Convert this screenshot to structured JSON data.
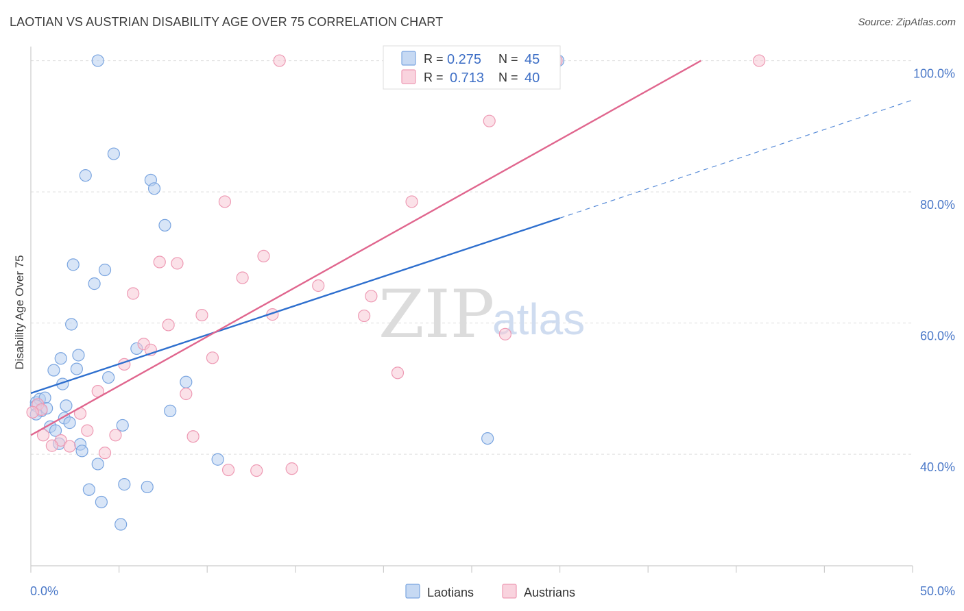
{
  "title": "LAOTIAN VS AUSTRIAN DISABILITY AGE OVER 75 CORRELATION CHART",
  "source": "Source: ZipAtlas.com",
  "watermark": {
    "part1": "ZIP",
    "part2": "atlas"
  },
  "legend": {
    "rows": [
      {
        "r_label": "R =",
        "r_value": "0.275",
        "n_label": "N =",
        "n_value": "45"
      },
      {
        "r_label": "R =",
        "r_value": "0.713",
        "n_label": "N =",
        "n_value": "40"
      }
    ]
  },
  "bottom_legend": {
    "series1": "Laotians",
    "series2": "Austrians"
  },
  "colors": {
    "laotians_fill": "#b8d0f0",
    "laotians_stroke": "#7aa5e0",
    "laotians_line": "#2e6fce",
    "austrians_fill": "#f8c8d6",
    "austrians_stroke": "#ee9ab4",
    "austrians_line": "#e0668e",
    "grid": "#dddddd",
    "axis_text": "#4a78c8"
  },
  "chart_data": {
    "type": "scatter",
    "title": "LAOTIAN VS AUSTRIAN DISABILITY AGE OVER 75 CORRELATION CHART",
    "xlabel": "",
    "ylabel": "Disability Age Over 75",
    "xlim": [
      0,
      50
    ],
    "ylim": [
      21,
      101
    ],
    "x_tick_labels": [
      "0.0%",
      "50.0%"
    ],
    "y_ticks": [
      40,
      60,
      80,
      100
    ],
    "y_tick_labels": [
      "40.0%",
      "60.0%",
      "80.0%",
      "100.0%"
    ],
    "grid": true,
    "legend_position": "top-center",
    "series": [
      {
        "name": "Laotians",
        "r": 0.275,
        "n": 45,
        "trend": {
          "x0": 0,
          "y0": 49.3,
          "x1": 30,
          "y1": 76.0,
          "dashed_to_x": 50,
          "dashed_to_y": 94.0
        },
        "points": [
          [
            3.8,
            100.0
          ],
          [
            4.7,
            85.8
          ],
          [
            3.1,
            82.5
          ],
          [
            6.8,
            81.8
          ],
          [
            7.0,
            80.5
          ],
          [
            7.6,
            74.9
          ],
          [
            2.4,
            68.9
          ],
          [
            4.2,
            68.1
          ],
          [
            3.6,
            66.0
          ],
          [
            2.3,
            59.8
          ],
          [
            6.0,
            56.1
          ],
          [
            2.7,
            55.1
          ],
          [
            1.7,
            54.6
          ],
          [
            1.3,
            52.8
          ],
          [
            2.6,
            53.0
          ],
          [
            4.4,
            51.7
          ],
          [
            1.8,
            50.7
          ],
          [
            8.8,
            51.0
          ],
          [
            0.3,
            47.9
          ],
          [
            0.5,
            48.4
          ],
          [
            0.8,
            48.6
          ],
          [
            0.3,
            47.4
          ],
          [
            0.6,
            46.6
          ],
          [
            0.9,
            47.0
          ],
          [
            2.0,
            47.4
          ],
          [
            0.3,
            46.1
          ],
          [
            7.9,
            46.6
          ],
          [
            1.9,
            45.5
          ],
          [
            2.2,
            44.8
          ],
          [
            1.1,
            44.2
          ],
          [
            5.2,
            44.4
          ],
          [
            1.4,
            43.6
          ],
          [
            1.6,
            41.6
          ],
          [
            2.8,
            41.5
          ],
          [
            2.9,
            40.5
          ],
          [
            25.9,
            42.4
          ],
          [
            10.6,
            39.2
          ],
          [
            3.8,
            38.5
          ],
          [
            5.3,
            35.4
          ],
          [
            3.3,
            34.6
          ],
          [
            6.6,
            35.0
          ],
          [
            4.0,
            32.7
          ],
          [
            5.1,
            29.3
          ],
          [
            26.0,
            100.0
          ],
          [
            29.9,
            100.0
          ]
        ]
      },
      {
        "name": "Austrians",
        "r": 0.713,
        "n": 40,
        "trend": {
          "x0": 0,
          "y0": 42.9,
          "x1": 38.0,
          "y1": 100.0
        },
        "points": [
          [
            14.1,
            100.0
          ],
          [
            29.8,
            100.0
          ],
          [
            41.3,
            100.0
          ],
          [
            26.0,
            90.8
          ],
          [
            11.0,
            78.5
          ],
          [
            21.6,
            78.5
          ],
          [
            13.2,
            70.2
          ],
          [
            7.3,
            69.3
          ],
          [
            8.3,
            69.1
          ],
          [
            12.0,
            66.9
          ],
          [
            16.3,
            65.7
          ],
          [
            5.8,
            64.5
          ],
          [
            19.3,
            64.1
          ],
          [
            9.7,
            61.2
          ],
          [
            13.7,
            61.3
          ],
          [
            18.9,
            61.1
          ],
          [
            7.8,
            59.7
          ],
          [
            26.9,
            58.3
          ],
          [
            6.4,
            56.8
          ],
          [
            6.8,
            55.9
          ],
          [
            10.3,
            54.7
          ],
          [
            5.3,
            53.7
          ],
          [
            20.8,
            52.4
          ],
          [
            3.8,
            49.6
          ],
          [
            8.8,
            49.2
          ],
          [
            2.8,
            46.2
          ],
          [
            0.4,
            47.6
          ],
          [
            0.6,
            46.8
          ],
          [
            0.1,
            46.4
          ],
          [
            3.2,
            43.6
          ],
          [
            4.8,
            42.9
          ],
          [
            0.7,
            42.9
          ],
          [
            9.2,
            42.7
          ],
          [
            1.7,
            42.1
          ],
          [
            1.2,
            41.3
          ],
          [
            2.2,
            41.2
          ],
          [
            4.2,
            40.2
          ],
          [
            11.2,
            37.6
          ],
          [
            12.8,
            37.5
          ],
          [
            14.8,
            37.8
          ]
        ]
      }
    ]
  }
}
